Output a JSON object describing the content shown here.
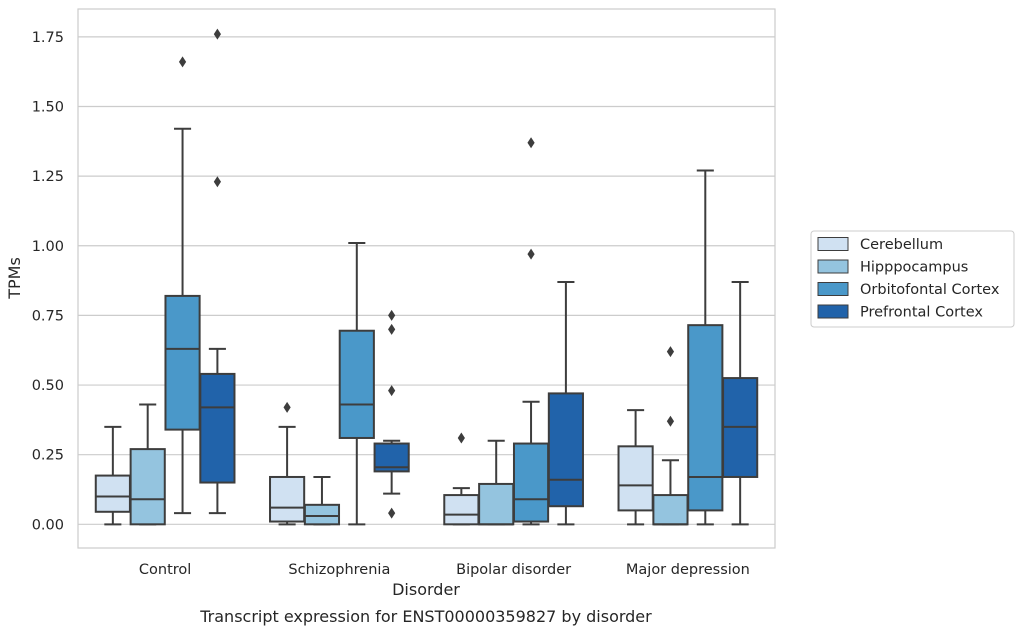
{
  "chart_data": {
    "type": "box",
    "caption": "Transcript expression for ENST00000359827 by disorder",
    "xlabel": "Disorder",
    "ylabel": "TPMs",
    "ylim": [
      -0.085,
      1.85
    ],
    "yticks": [
      0.0,
      0.25,
      0.5,
      0.75,
      1.0,
      1.25,
      1.5,
      1.75
    ],
    "ytick_labels": [
      "0.00",
      "0.25",
      "0.50",
      "0.75",
      "1.00",
      "1.25",
      "1.50",
      "1.75"
    ],
    "grid": true,
    "legend_position": "right",
    "categories": [
      "Control",
      "Schizophrenia",
      "Bipolar disorder",
      "Major depression"
    ],
    "series": [
      {
        "name": "Cerebellum",
        "color": "#d0e1f2",
        "boxes": [
          {
            "whislo": 0.0,
            "q1": 0.045,
            "med": 0.1,
            "q3": 0.175,
            "whishi": 0.35,
            "fliers": []
          },
          {
            "whislo": 0.0,
            "q1": 0.01,
            "med": 0.06,
            "q3": 0.17,
            "whishi": 0.35,
            "fliers": [
              0.42
            ]
          },
          {
            "whislo": 0.0,
            "q1": 0.0,
            "med": 0.035,
            "q3": 0.105,
            "whishi": 0.13,
            "fliers": [
              0.31
            ]
          },
          {
            "whislo": 0.0,
            "q1": 0.05,
            "med": 0.14,
            "q3": 0.28,
            "whishi": 0.41,
            "fliers": []
          }
        ]
      },
      {
        "name": "Hipppocampus",
        "color": "#94c4df",
        "boxes": [
          {
            "whislo": 0.0,
            "q1": 0.0,
            "med": 0.09,
            "q3": 0.27,
            "whishi": 0.43,
            "fliers": []
          },
          {
            "whislo": 0.0,
            "q1": 0.0,
            "med": 0.03,
            "q3": 0.07,
            "whishi": 0.17,
            "fliers": []
          },
          {
            "whislo": 0.0,
            "q1": 0.0,
            "med": 0.0,
            "q3": 0.145,
            "whishi": 0.3,
            "fliers": []
          },
          {
            "whislo": 0.0,
            "q1": 0.0,
            "med": 0.0,
            "q3": 0.105,
            "whishi": 0.23,
            "fliers": [
              0.37,
              0.62
            ]
          }
        ]
      },
      {
        "name": "Orbitofontal Cortex",
        "color": "#4a98c9",
        "boxes": [
          {
            "whislo": 0.04,
            "q1": 0.34,
            "med": 0.63,
            "q3": 0.82,
            "whishi": 1.42,
            "fliers": [
              1.66
            ]
          },
          {
            "whislo": 0.0,
            "q1": 0.31,
            "med": 0.43,
            "q3": 0.695,
            "whishi": 1.01,
            "fliers": []
          },
          {
            "whislo": 0.0,
            "q1": 0.01,
            "med": 0.09,
            "q3": 0.29,
            "whishi": 0.44,
            "fliers": [
              0.97,
              1.37
            ]
          },
          {
            "whislo": 0.0,
            "q1": 0.05,
            "med": 0.17,
            "q3": 0.715,
            "whishi": 1.27,
            "fliers": []
          }
        ]
      },
      {
        "name": "Prefrontal Cortex",
        "color": "#2163aa",
        "boxes": [
          {
            "whislo": 0.04,
            "q1": 0.15,
            "med": 0.42,
            "q3": 0.54,
            "whishi": 0.63,
            "fliers": [
              1.23,
              1.76
            ]
          },
          {
            "whislo": 0.11,
            "q1": 0.19,
            "med": 0.205,
            "q3": 0.29,
            "whishi": 0.3,
            "fliers": [
              0.04,
              0.48,
              0.7,
              0.75
            ]
          },
          {
            "whislo": 0.0,
            "q1": 0.065,
            "med": 0.16,
            "q3": 0.47,
            "whishi": 0.87,
            "fliers": []
          },
          {
            "whislo": 0.0,
            "q1": 0.17,
            "med": 0.35,
            "q3": 0.525,
            "whishi": 0.87,
            "fliers": []
          }
        ]
      }
    ]
  }
}
